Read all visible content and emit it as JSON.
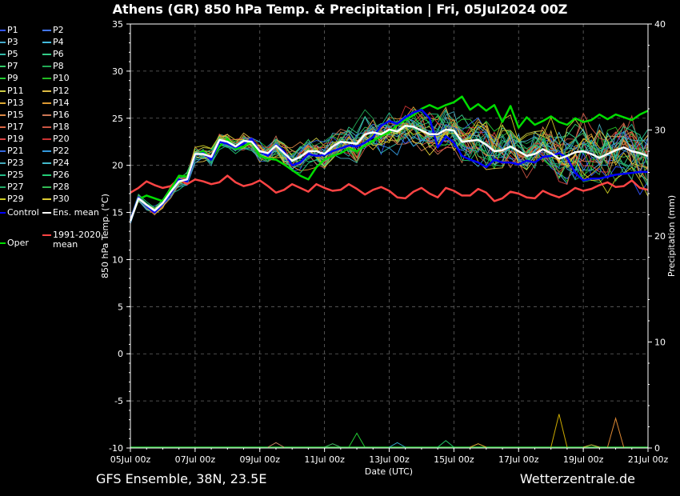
{
  "header": {
    "title": "Athens  (GR)  850 hPa Temp. & Precipitation | Fri, 05Jul2024 00Z"
  },
  "footer": {
    "left": "GFS Ensemble, 38N, 23.5E",
    "right": "Wetterzentrale.de"
  },
  "chart_data": {
    "type": "line",
    "xlabel": "Date (UTC)",
    "ylabel": "850 hPa Temp. (°C)",
    "y2label": "Precipitation (mm)",
    "ylim": [
      -10,
      35
    ],
    "y2lim": [
      0,
      40
    ],
    "yticks": [
      "35",
      "30",
      "25",
      "20",
      "15",
      "10",
      "5",
      "0",
      "-5",
      "-10"
    ],
    "y2ticks": [
      "40",
      "30",
      "20",
      "10",
      "0"
    ],
    "xticks": [
      "05Jul 00z",
      "07Jul 00z",
      "09Jul 00z",
      "11Jul 00z",
      "13Jul 00z",
      "15Jul 00z",
      "17Jul 00z",
      "19Jul 00z",
      "21Jul 00z"
    ],
    "xlim_hours": [
      0,
      384
    ],
    "step_hours": 6,
    "grid": true,
    "colors": {
      "control": "#0000ff",
      "ens_mean": "#ffffff",
      "clim_mean": "#ff4444",
      "oper": "#00dd00",
      "axis": "#ffffff",
      "grid": "#666666"
    },
    "legend": {
      "members": [
        "P1",
        "P2",
        "P3",
        "P4",
        "P5",
        "P6",
        "P7",
        "P8",
        "P9",
        "P10",
        "P11",
        "P12",
        "P13",
        "P14",
        "P15",
        "P16",
        "P17",
        "P18",
        "P19",
        "P20",
        "P21",
        "P22",
        "P23",
        "P24",
        "P25",
        "P26",
        "P27",
        "P28",
        "P29",
        "P30"
      ],
      "member_colors": [
        "#3355ff",
        "#4477ff",
        "#44aacc",
        "#44bbdd",
        "#33bbaa",
        "#33cc88",
        "#33cc66",
        "#22aa55",
        "#22cc33",
        "#22bb22",
        "#cccc44",
        "#ddbb44",
        "#ddaa33",
        "#dd9933",
        "#dd8844",
        "#cc7755",
        "#dd6644",
        "#cc5544",
        "#dd4444",
        "#cc3333",
        "#3366dd",
        "#3399dd",
        "#44aabb",
        "#44bbcc",
        "#22bb88",
        "#22cc77",
        "#22aa66",
        "#33bb55",
        "#cccc22",
        "#ddcc33"
      ],
      "control": "Control",
      "ens_mean": "Ens. mean",
      "clim_mean": "1991-2020 mean",
      "clim_mean_line1": "1991-2020",
      "clim_mean_line2": "mean",
      "oper": "Oper"
    },
    "series": [
      {
        "name": "Control",
        "color": "#0000ff",
        "width": 2.5,
        "values": [
          14.2,
          16.6,
          15.7,
          15.0,
          15.9,
          17.0,
          18.5,
          18.3,
          21.1,
          21.3,
          20.6,
          22.5,
          22.3,
          21.9,
          22.3,
          22.8,
          21.5,
          21.0,
          22.2,
          21.5,
          20.0,
          20.3,
          21.2,
          21.0,
          21.1,
          21.5,
          21.8,
          22.1,
          22.0,
          22.4,
          23.0,
          24.2,
          24.7,
          24.4,
          25.1,
          25.6,
          25.9,
          25.0,
          21.9,
          23.1,
          22.4,
          21.0,
          20.6,
          20.3,
          19.8,
          20.6,
          20.3,
          20.3,
          20.1,
          20.5,
          20.3,
          20.9,
          21.0,
          21.3,
          20.8,
          19.2,
          18.4,
          18.6,
          18.6,
          18.8,
          19.0,
          19.1,
          19.2,
          19.3,
          19.3
        ]
      },
      {
        "name": "Ens. mean",
        "color": "#ffffff",
        "width": 2.5,
        "values": [
          14.1,
          16.5,
          15.8,
          15.2,
          16.0,
          17.2,
          18.3,
          18.5,
          21.2,
          21.2,
          20.9,
          22.7,
          22.5,
          22.0,
          22.6,
          22.5,
          21.5,
          21.3,
          22.1,
          21.3,
          20.5,
          20.9,
          21.5,
          21.5,
          21.2,
          22.0,
          22.5,
          22.4,
          22.3,
          23.3,
          23.5,
          23.3,
          23.8,
          23.6,
          24.2,
          24.1,
          23.7,
          23.3,
          23.3,
          23.8,
          23.7,
          22.5,
          22.6,
          22.7,
          22.2,
          21.5,
          21.6,
          22.0,
          21.5,
          21.0,
          21.2,
          21.7,
          21.3,
          20.7,
          21.0,
          21.4,
          21.5,
          21.2,
          20.8,
          21.2,
          21.6,
          21.9,
          21.5,
          21.3,
          21.0
        ]
      },
      {
        "name": "1991-2020 mean",
        "color": "#ff4444",
        "width": 2.5,
        "values": [
          17.1,
          17.6,
          18.3,
          17.9,
          17.6,
          17.8,
          18.6,
          18.0,
          18.5,
          18.3,
          18.0,
          18.2,
          18.9,
          18.2,
          17.8,
          18.0,
          18.4,
          17.8,
          17.1,
          17.4,
          18.0,
          17.6,
          17.2,
          18.0,
          17.6,
          17.3,
          17.4,
          18.0,
          17.5,
          16.9,
          17.4,
          17.7,
          17.3,
          16.6,
          16.5,
          17.2,
          17.6,
          17.0,
          16.6,
          17.6,
          17.3,
          16.8,
          16.8,
          17.5,
          17.1,
          16.2,
          16.5,
          17.2,
          17.0,
          16.6,
          16.5,
          17.3,
          16.9,
          16.6,
          17.0,
          17.6,
          17.3,
          17.5,
          17.9,
          18.2,
          17.7,
          17.8,
          18.4,
          17.6,
          17.4
        ]
      },
      {
        "name": "Oper",
        "color": "#00dd00",
        "width": 2.5,
        "values": [
          14.2,
          16.4,
          16.8,
          16.5,
          16.2,
          17.5,
          18.9,
          18.8,
          21.0,
          21.5,
          20.7,
          22.0,
          22.8,
          21.7,
          22.0,
          22.5,
          21.0,
          20.7,
          20.6,
          20.1,
          19.5,
          18.9,
          18.5,
          19.8,
          20.6,
          21.0,
          21.3,
          21.8,
          21.5,
          22.1,
          22.6,
          23.1,
          23.5,
          24.3,
          24.8,
          25.3,
          26.0,
          26.4,
          26.0,
          26.4,
          26.7,
          27.3,
          25.9,
          26.5,
          25.8,
          26.4,
          24.6,
          26.3,
          24.0,
          25.1,
          24.3,
          24.7,
          25.2,
          24.6,
          24.3,
          25.0,
          24.6,
          24.8,
          25.4,
          24.9,
          25.4,
          25.1,
          24.8,
          25.4,
          25.8
        ]
      }
    ],
    "precip_spikes_mm": [
      {
        "hour": 318,
        "value": 3.2,
        "color": "#ccaa00"
      },
      {
        "hour": 360,
        "value": 2.8,
        "color": "#dd8833"
      },
      {
        "hour": 168,
        "value": 1.4,
        "color": "#22cc33"
      },
      {
        "hour": 108,
        "value": 0.5,
        "color": "#cc8866"
      },
      {
        "hour": 150,
        "value": 0.4,
        "color": "#44bb66"
      },
      {
        "hour": 198,
        "value": 0.5,
        "color": "#33aacc"
      },
      {
        "hour": 258,
        "value": 0.4,
        "color": "#ddaa33"
      },
      {
        "hour": 234,
        "value": 0.7,
        "color": "#22cc66"
      },
      {
        "hour": 342,
        "value": 0.3,
        "color": "#cccc44"
      }
    ]
  }
}
